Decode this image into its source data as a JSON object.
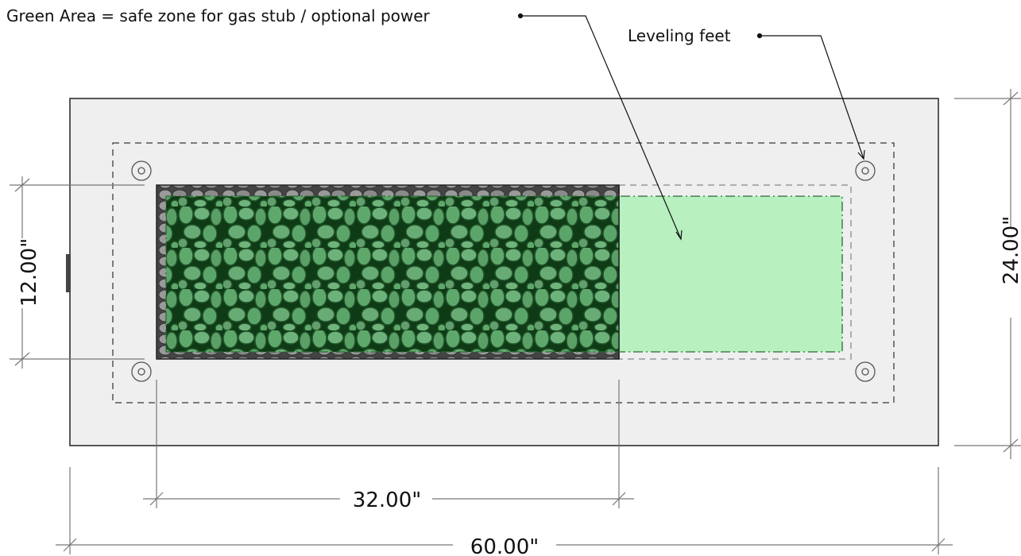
{
  "callouts": {
    "green_area": "Green Area = safe zone for gas stub / optional power",
    "leveling_feet": "Leveling feet"
  },
  "dimensions": {
    "overall_width": "60.00\"",
    "burner_width": "32.00\"",
    "burner_depth": "12.00\"",
    "overall_depth": "24.00\""
  },
  "colors": {
    "safe_zone": "#b8f0c0",
    "stone_tint": "#2e8b3a",
    "table_top": "#efefef"
  }
}
